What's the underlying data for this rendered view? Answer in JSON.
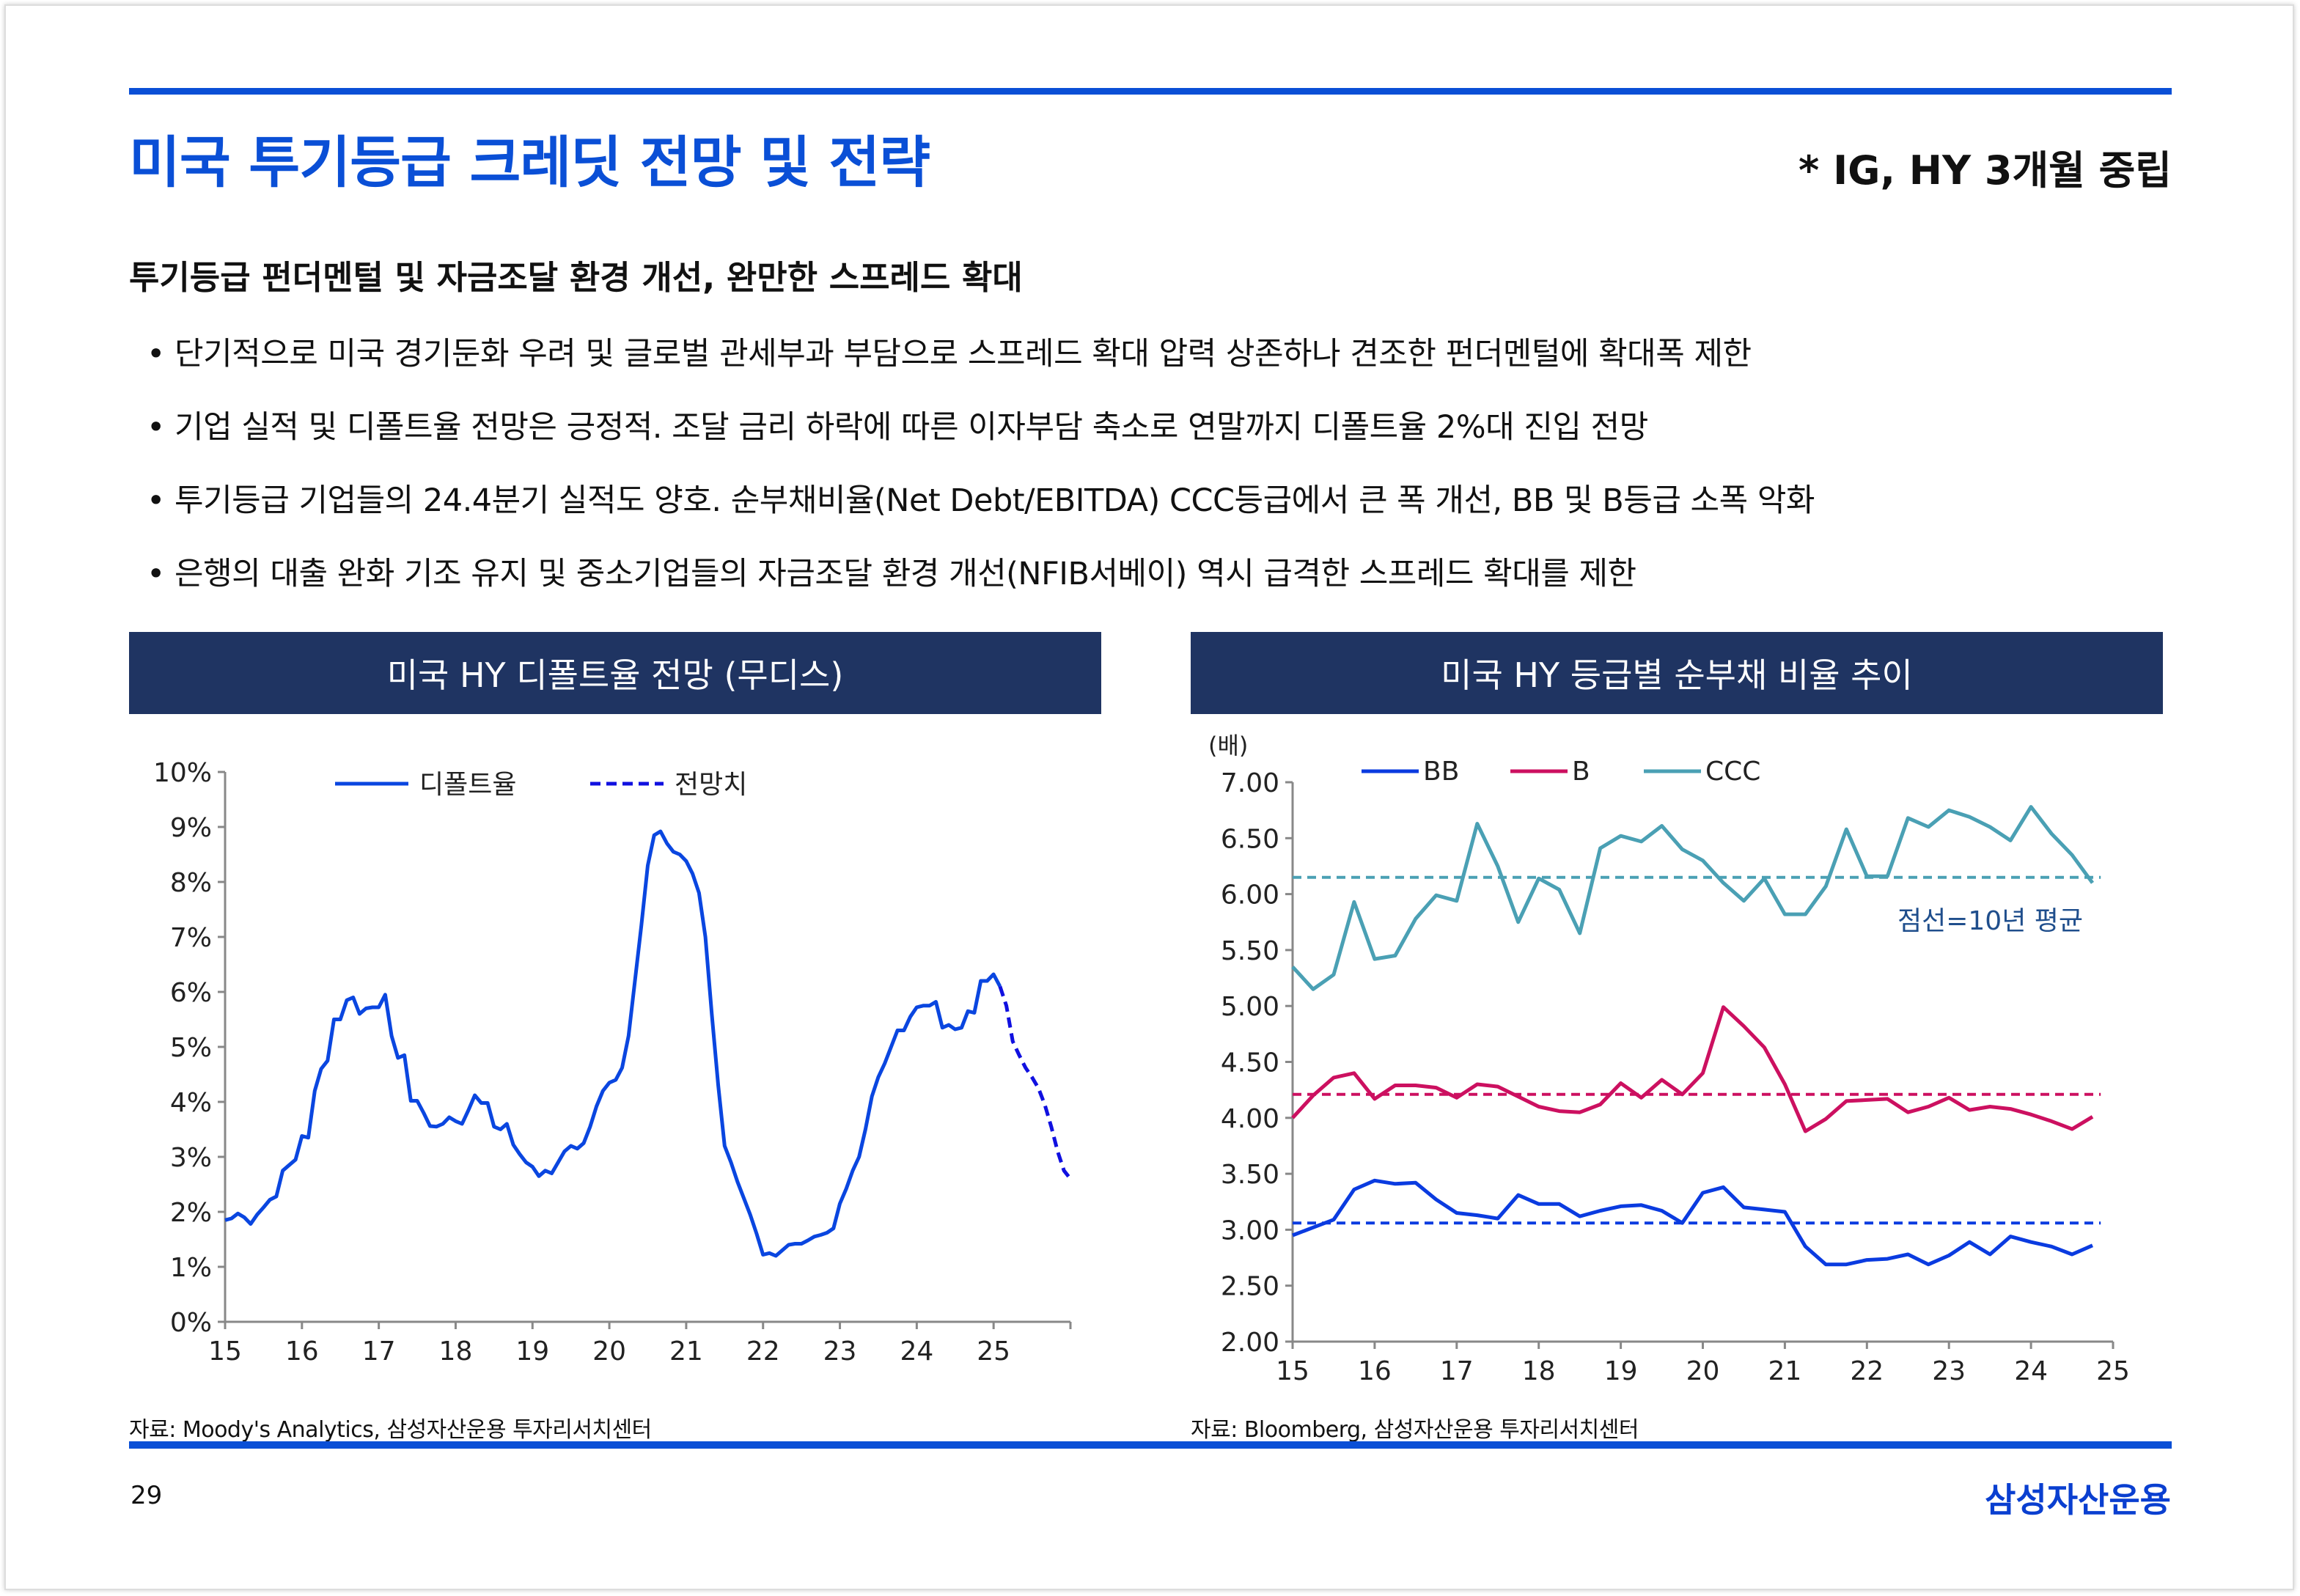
{
  "header": {
    "title": "미국 투기등급 크레딧 전망 및 전략",
    "stance": "* IG, HY 3개월 중립"
  },
  "subtitle": "투기등급 펀더멘털 및 자금조달 환경 개선, 완만한 스프레드 확대",
  "bullets": [
    "단기적으로 미국 경기둔화 우려 및 글로벌 관세부과 부담으로 스프레드 확대 압력 상존하나 견조한 펀더멘털에 확대폭 제한",
    "기업 실적 및 디폴트율 전망은 긍정적. 조달 금리 하락에 따른 이자부담 축소로 연말까지 디폴트율 2%대 진입 전망",
    "투기등급 기업들의 24.4분기 실적도 양호. 순부채비율(Net Debt/EBITDA) CCC등급에서 큰 폭 개선, BB 및 B등급 소폭 악화",
    "은행의 대출 완화 기조 유지 및 중소기업들의 자금조달 환경 개선(NFIB서베이) 역시 급격한 스프레드 확대를 제한"
  ],
  "footer": {
    "page": "29",
    "logo": "삼성자산운용"
  },
  "colors": {
    "accent": "#0a4fd6",
    "header_bg": "#1f3462",
    "default_line": "#0a46e0",
    "forecast_line": "#1010e0",
    "bb": "#0a3be0",
    "b": "#cc1060",
    "ccc": "#4aa0b4"
  },
  "chart_data": [
    {
      "type": "line",
      "title": "미국 HY 디폴트율 전망 (무디스)",
      "source": "자료: Moody's Analytics, 삼성자산운용 투자리서치센터",
      "x_start": 15,
      "x_step": 0.08333,
      "xlim": [
        15,
        26
      ],
      "xticks": [
        "15",
        "16",
        "17",
        "18",
        "19",
        "20",
        "21",
        "22",
        "23",
        "24",
        "25"
      ],
      "ylim": [
        0,
        10
      ],
      "yticks": [
        "0%",
        "1%",
        "2%",
        "3%",
        "4%",
        "5%",
        "6%",
        "7%",
        "8%",
        "9%",
        "10%"
      ],
      "series": [
        {
          "name": "디폴트율",
          "style": "solid",
          "start_index": 0,
          "values": [
            1.85,
            1.88,
            1.97,
            1.9,
            1.78,
            1.95,
            2.08,
            2.22,
            2.28,
            2.75,
            2.85,
            2.95,
            3.38,
            3.35,
            4.2,
            4.6,
            4.75,
            5.5,
            5.5,
            5.85,
            5.9,
            5.6,
            5.7,
            5.72,
            5.72,
            5.95,
            5.2,
            4.8,
            4.85,
            4.02,
            4.02,
            3.8,
            3.56,
            3.55,
            3.6,
            3.72,
            3.65,
            3.6,
            3.85,
            4.12,
            3.98,
            3.98,
            3.55,
            3.5,
            3.6,
            3.22,
            3.05,
            2.9,
            2.82,
            2.65,
            2.75,
            2.7,
            2.9,
            3.1,
            3.2,
            3.15,
            3.25,
            3.55,
            3.92,
            4.2,
            4.35,
            4.4,
            4.62,
            5.2,
            6.2,
            7.2,
            8.3,
            8.85,
            8.92,
            8.7,
            8.55,
            8.5,
            8.38,
            8.15,
            7.8,
            7.0,
            5.6,
            4.3,
            3.2,
            2.9,
            2.55,
            2.25,
            1.95,
            1.6,
            1.22,
            1.25,
            1.2,
            1.3,
            1.4,
            1.42,
            1.42,
            1.48,
            1.55,
            1.58,
            1.62,
            1.7,
            2.15,
            2.42,
            2.75,
            3.0,
            3.5,
            4.1,
            4.45,
            4.7,
            5.0,
            5.3,
            5.3,
            5.55,
            5.72,
            5.75,
            5.75,
            5.82,
            5.35,
            5.4,
            5.32,
            5.35,
            5.65,
            5.62,
            6.2,
            6.2,
            6.32,
            6.1
          ]
        },
        {
          "name": "전망치",
          "style": "dashed",
          "start_index": 121,
          "values": [
            6.1,
            5.75,
            5.1,
            4.85,
            4.62,
            4.45,
            4.25,
            3.95,
            3.55,
            3.1,
            2.75,
            2.6
          ]
        }
      ]
    },
    {
      "type": "line",
      "title": "미국 HY 등급별 순부채 비율 추이",
      "source": "자료: Bloomberg, 삼성자산운용 투자리서치센터",
      "unit": "(배)",
      "annotation": "점선=10년 평균",
      "x_start": 15,
      "x_step": 0.25,
      "xlim": [
        15,
        25
      ],
      "xticks": [
        "15",
        "16",
        "17",
        "18",
        "19",
        "20",
        "21",
        "22",
        "23",
        "24",
        "25"
      ],
      "ylim": [
        2,
        7
      ],
      "yticks": [
        "2.00",
        "2.50",
        "3.00",
        "3.50",
        "4.00",
        "4.50",
        "5.00",
        "5.50",
        "6.00",
        "6.50",
        "7.00"
      ],
      "series": [
        {
          "name": "BB",
          "color_key": "bb",
          "average": 3.06,
          "values": [
            2.95,
            3.02,
            3.09,
            3.36,
            3.44,
            3.41,
            3.42,
            3.27,
            3.15,
            3.13,
            3.1,
            3.31,
            3.23,
            3.23,
            3.12,
            3.17,
            3.21,
            3.22,
            3.17,
            3.06,
            3.33,
            3.38,
            3.2,
            3.18,
            3.16,
            2.85,
            2.69,
            2.69,
            2.73,
            2.74,
            2.78,
            2.69,
            2.77,
            2.89,
            2.78,
            2.94,
            2.89,
            2.85,
            2.78,
            2.86
          ]
        },
        {
          "name": "B",
          "color_key": "b",
          "average": 4.21,
          "values": [
            4.0,
            4.2,
            4.36,
            4.4,
            4.17,
            4.29,
            4.29,
            4.27,
            4.18,
            4.3,
            4.28,
            4.19,
            4.1,
            4.06,
            4.05,
            4.12,
            4.31,
            4.18,
            4.34,
            4.21,
            4.4,
            4.99,
            4.82,
            4.63,
            4.3,
            3.88,
            3.99,
            4.15,
            4.16,
            4.17,
            4.05,
            4.1,
            4.18,
            4.07,
            4.1,
            4.08,
            4.03,
            3.97,
            3.9,
            4.01
          ]
        },
        {
          "name": "CCC",
          "color_key": "ccc",
          "average": 6.15,
          "values": [
            5.35,
            5.15,
            5.28,
            5.93,
            5.42,
            5.45,
            5.78,
            5.99,
            5.94,
            6.63,
            6.25,
            5.75,
            6.14,
            6.04,
            5.65,
            6.41,
            6.52,
            6.47,
            6.61,
            6.4,
            6.3,
            6.1,
            5.94,
            6.14,
            5.82,
            5.82,
            6.07,
            6.58,
            6.16,
            6.16,
            6.68,
            6.6,
            6.75,
            6.69,
            6.6,
            6.48,
            6.78,
            6.54,
            6.35,
            6.1
          ]
        }
      ]
    }
  ]
}
